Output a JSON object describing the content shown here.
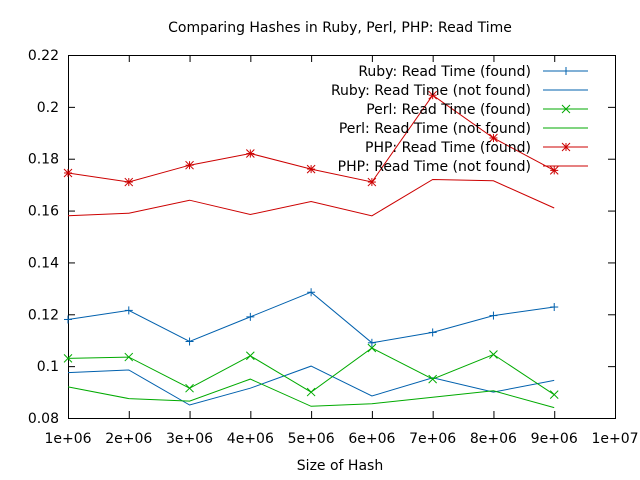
{
  "chart_data": {
    "type": "line",
    "title": "Comparing Hashes in Ruby, Perl, PHP: Read Time",
    "xlabel": "Size of Hash",
    "ylabel": "",
    "xlim": [
      1000000,
      10000000
    ],
    "ylim": [
      0.08,
      0.22
    ],
    "x_ticks": [
      {
        "value": 1000000,
        "label": "1e+06"
      },
      {
        "value": 2000000,
        "label": "2e+06"
      },
      {
        "value": 3000000,
        "label": "3e+06"
      },
      {
        "value": 4000000,
        "label": "4e+06"
      },
      {
        "value": 5000000,
        "label": "5e+06"
      },
      {
        "value": 6000000,
        "label": "6e+06"
      },
      {
        "value": 7000000,
        "label": "7e+06"
      },
      {
        "value": 8000000,
        "label": "8e+06"
      },
      {
        "value": 9000000,
        "label": "9e+06"
      },
      {
        "value": 10000000,
        "label": "1e+07"
      }
    ],
    "y_ticks": [
      {
        "value": 0.08,
        "label": "0.08"
      },
      {
        "value": 0.1,
        "label": "0.1"
      },
      {
        "value": 0.12,
        "label": "0.12"
      },
      {
        "value": 0.14,
        "label": "0.14"
      },
      {
        "value": 0.16,
        "label": "0.16"
      },
      {
        "value": 0.18,
        "label": "0.18"
      },
      {
        "value": 0.2,
        "label": "0.2"
      },
      {
        "value": 0.22,
        "label": "0.22"
      }
    ],
    "grid": false,
    "legend_position": "top-right",
    "x": [
      1000000,
      2000000,
      3000000,
      4000000,
      5000000,
      6000000,
      7000000,
      8000000,
      9000000
    ],
    "series": [
      {
        "name": "Ruby: Read Time (found)",
        "color": "#0060ad",
        "marker": "plus",
        "values": [
          0.118,
          0.1215,
          0.1095,
          0.119,
          0.1285,
          0.109,
          0.113,
          0.1195,
          0.1228
        ]
      },
      {
        "name": "Ruby: Read Time (not found)",
        "color": "#0060ad",
        "marker": "none",
        "values": [
          0.0975,
          0.0985,
          0.085,
          0.0915,
          0.1,
          0.0885,
          0.0955,
          0.09,
          0.0945
        ]
      },
      {
        "name": "Perl: Read Time (found)",
        "color": "#00aa00",
        "marker": "cross",
        "values": [
          0.103,
          0.1035,
          0.0915,
          0.104,
          0.09,
          0.107,
          0.095,
          0.1045,
          0.089
        ]
      },
      {
        "name": "Perl: Read Time (not found)",
        "color": "#00aa00",
        "marker": "none",
        "values": [
          0.092,
          0.0875,
          0.0865,
          0.095,
          0.0845,
          0.0855,
          0.088,
          0.0905,
          0.084
        ]
      },
      {
        "name": "PHP: Read Time (found)",
        "color": "#cc0000",
        "marker": "star",
        "values": [
          0.1745,
          0.171,
          0.1775,
          0.182,
          0.176,
          0.171,
          0.2045,
          0.188,
          0.1755
        ]
      },
      {
        "name": "PHP: Read Time (not found)",
        "color": "#cc0000",
        "marker": "none",
        "values": [
          0.158,
          0.159,
          0.164,
          0.1585,
          0.1635,
          0.158,
          0.172,
          0.1715,
          0.161
        ]
      }
    ]
  }
}
